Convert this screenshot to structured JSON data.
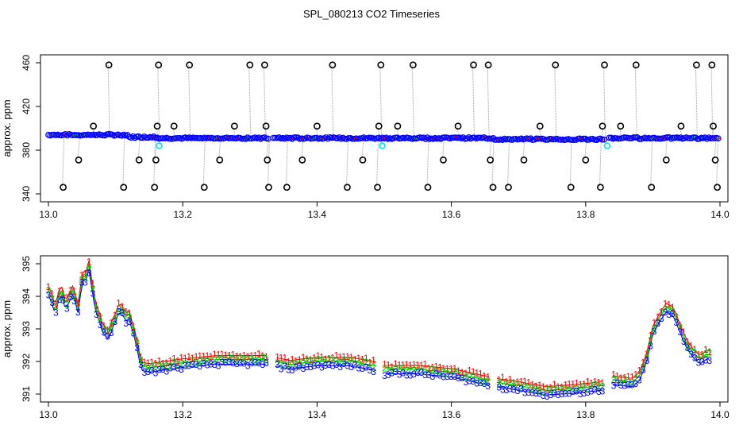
{
  "figure": {
    "title": "SPL_080213  CO2 Timeseries"
  },
  "chart_data": [
    {
      "type": "scatter",
      "panel": "top",
      "xlabel": "",
      "ylabel": "approx. ppm",
      "xlim": [
        13.0,
        14.0
      ],
      "ylim": [
        340,
        460
      ],
      "xticks": [
        "13.0",
        "13.2",
        "13.4",
        "13.6",
        "13.8",
        "14.0"
      ],
      "yticks": [
        "340",
        "380",
        "420",
        "460"
      ],
      "grid": false,
      "colors": {
        "points": "#0000ff",
        "outliers": "#000000",
        "flagged": "#00e5ee",
        "spikes": "#9a9a9a",
        "series1": "#ff0000",
        "series2": "#00cd00"
      },
      "segments": [
        {
          "x_start": 13.0,
          "x_end": 13.165,
          "y_level": 392
        },
        {
          "x_start": 13.165,
          "x_end": 13.33,
          "y_level": 391
        },
        {
          "x_start": 13.335,
          "x_end": 13.5,
          "y_level": 391
        },
        {
          "x_start": 13.5,
          "x_end": 13.665,
          "y_level": 391
        },
        {
          "x_start": 13.665,
          "x_end": 13.83,
          "y_level": 390
        },
        {
          "x_start": 13.835,
          "x_end": 14.0,
          "y_level": 391
        }
      ],
      "outliers": [
        [
          13.022,
          346
        ],
        [
          13.045,
          371
        ],
        [
          13.067,
          402
        ],
        [
          13.09,
          458
        ],
        [
          13.112,
          346
        ],
        [
          13.135,
          371
        ],
        [
          13.158,
          346
        ],
        [
          13.16,
          371
        ],
        [
          13.162,
          402
        ],
        [
          13.164,
          458
        ],
        [
          13.187,
          402
        ],
        [
          13.21,
          458
        ],
        [
          13.232,
          346
        ],
        [
          13.255,
          371
        ],
        [
          13.277,
          402
        ],
        [
          13.3,
          458
        ],
        [
          13.322,
          458
        ],
        [
          13.324,
          402
        ],
        [
          13.326,
          371
        ],
        [
          13.328,
          346
        ],
        [
          13.355,
          346
        ],
        [
          13.378,
          371
        ],
        [
          13.4,
          402
        ],
        [
          13.423,
          458
        ],
        [
          13.445,
          346
        ],
        [
          13.468,
          371
        ],
        [
          13.49,
          346
        ],
        [
          13.492,
          402
        ],
        [
          13.495,
          458
        ],
        [
          13.52,
          402
        ],
        [
          13.543,
          458
        ],
        [
          13.565,
          346
        ],
        [
          13.588,
          371
        ],
        [
          13.61,
          402
        ],
        [
          13.633,
          458
        ],
        [
          13.655,
          458
        ],
        [
          13.658,
          371
        ],
        [
          13.662,
          346
        ],
        [
          13.685,
          346
        ],
        [
          13.708,
          371
        ],
        [
          13.732,
          402
        ],
        [
          13.755,
          458
        ],
        [
          13.778,
          346
        ],
        [
          13.8,
          371
        ],
        [
          13.822,
          346
        ],
        [
          13.825,
          402
        ],
        [
          13.828,
          458
        ],
        [
          13.852,
          402
        ],
        [
          13.875,
          458
        ],
        [
          13.898,
          346
        ],
        [
          13.92,
          371
        ],
        [
          13.942,
          402
        ],
        [
          13.965,
          458
        ],
        [
          13.988,
          458
        ],
        [
          13.99,
          402
        ],
        [
          13.993,
          371
        ],
        [
          13.996,
          346
        ]
      ],
      "flagged": [
        [
          13.165,
          384
        ],
        [
          13.497,
          384
        ],
        [
          13.832,
          384
        ]
      ]
    },
    {
      "type": "scatter",
      "panel": "bottom",
      "xlabel": "",
      "ylabel": "approx. ppm",
      "xlim": [
        13.0,
        14.0
      ],
      "ylim": [
        391,
        395
      ],
      "xticks": [
        "13.0",
        "13.2",
        "13.4",
        "13.6",
        "13.8",
        "14.0"
      ],
      "yticks": [
        "391",
        "392",
        "393",
        "394",
        "395"
      ],
      "grid": false,
      "marker_labels": [
        "1",
        "2",
        "3"
      ],
      "series_colors": [
        "#ff0000",
        "#00cd00",
        "#0000ff"
      ],
      "gaps": [
        [
          13.326,
          13.336
        ],
        [
          13.488,
          13.5
        ],
        [
          13.656,
          13.666
        ],
        [
          13.825,
          13.836
        ]
      ],
      "profile": [
        [
          13.0,
          394.1
        ],
        [
          13.005,
          393.9
        ],
        [
          13.01,
          393.5
        ],
        [
          13.015,
          394.0
        ],
        [
          13.02,
          394.1
        ],
        [
          13.025,
          393.7
        ],
        [
          13.03,
          393.8
        ],
        [
          13.035,
          394.2
        ],
        [
          13.04,
          393.9
        ],
        [
          13.045,
          393.5
        ],
        [
          13.05,
          394.6
        ],
        [
          13.055,
          394.5
        ],
        [
          13.06,
          394.9
        ],
        [
          13.065,
          394.3
        ],
        [
          13.07,
          393.6
        ],
        [
          13.075,
          393.4
        ],
        [
          13.08,
          393.0
        ],
        [
          13.085,
          392.85
        ],
        [
          13.09,
          392.75
        ],
        [
          13.095,
          393.1
        ],
        [
          13.1,
          393.3
        ],
        [
          13.105,
          393.6
        ],
        [
          13.11,
          393.55
        ],
        [
          13.115,
          393.3
        ],
        [
          13.12,
          393.4
        ],
        [
          13.125,
          393.0
        ],
        [
          13.13,
          392.7
        ],
        [
          13.135,
          392.1
        ],
        [
          13.14,
          391.8
        ],
        [
          13.15,
          391.75
        ],
        [
          13.2,
          391.9
        ],
        [
          13.25,
          392.0
        ],
        [
          13.3,
          392.0
        ],
        [
          13.326,
          392.0
        ],
        [
          13.336,
          391.95
        ],
        [
          13.36,
          391.85
        ],
        [
          13.4,
          391.95
        ],
        [
          13.45,
          391.95
        ],
        [
          13.488,
          391.8
        ],
        [
          13.5,
          391.7
        ],
        [
          13.55,
          391.7
        ],
        [
          13.6,
          391.6
        ],
        [
          13.656,
          391.35
        ],
        [
          13.666,
          391.3
        ],
        [
          13.7,
          391.2
        ],
        [
          13.74,
          391.05
        ],
        [
          13.78,
          391.1
        ],
        [
          13.825,
          391.2
        ],
        [
          13.836,
          391.4
        ],
        [
          13.85,
          391.35
        ],
        [
          13.87,
          391.3
        ],
        [
          13.88,
          391.5
        ],
        [
          13.89,
          392.0
        ],
        [
          13.9,
          392.9
        ],
        [
          13.91,
          393.3
        ],
        [
          13.92,
          393.6
        ],
        [
          13.93,
          393.5
        ],
        [
          13.94,
          393.0
        ],
        [
          13.95,
          392.5
        ],
        [
          13.96,
          392.2
        ],
        [
          13.97,
          392.0
        ],
        [
          13.98,
          392.15
        ]
      ]
    }
  ]
}
